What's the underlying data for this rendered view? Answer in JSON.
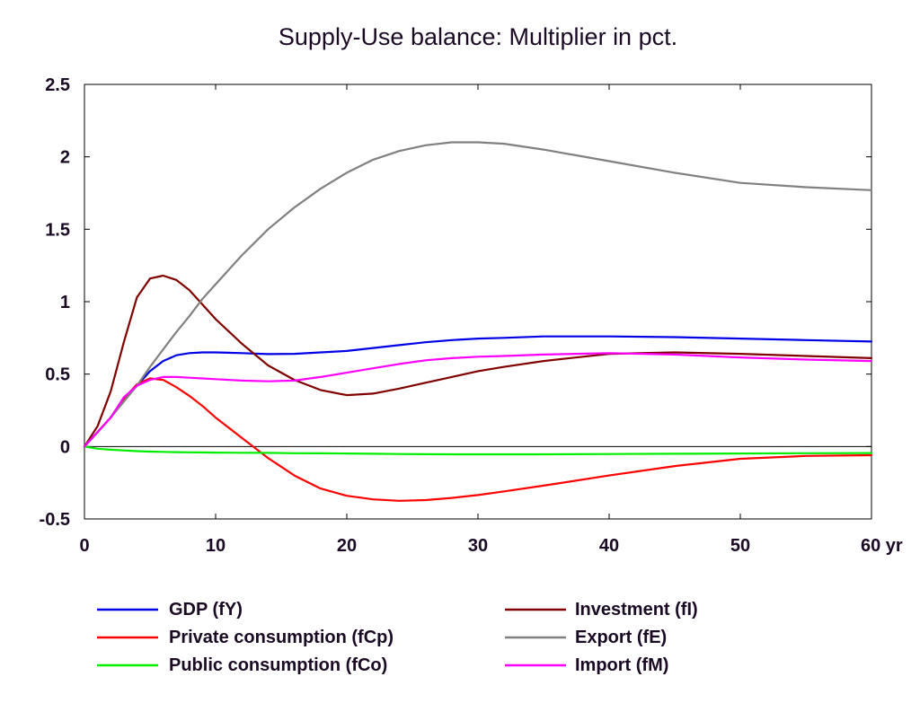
{
  "chart_data": {
    "type": "line",
    "title": "Supply-Use balance: Multiplier in pct.",
    "xlabel": "",
    "ylabel": "",
    "x_unit_label": "yr",
    "xlim": [
      0,
      60
    ],
    "ylim": [
      -0.5,
      2.5
    ],
    "x_ticks": [
      0,
      10,
      20,
      30,
      40,
      50,
      60
    ],
    "x_tick_labels": [
      "0",
      "10",
      "20",
      "30",
      "40",
      "50",
      "60 yr"
    ],
    "y_ticks": [
      -0.5,
      0,
      0.5,
      1,
      1.5,
      2,
      2.5
    ],
    "y_tick_labels": [
      "-0.5",
      "0",
      "0.5",
      "1",
      "1.5",
      "2",
      "2.5"
    ],
    "grid": false,
    "zero_line": true,
    "legend_position": "bottom",
    "x": [
      0,
      1,
      2,
      3,
      4,
      5,
      6,
      7,
      8,
      9,
      10,
      12,
      14,
      16,
      18,
      20,
      22,
      24,
      26,
      28,
      30,
      32,
      35,
      40,
      45,
      50,
      55,
      60
    ],
    "series": [
      {
        "name": "GDP (fY)",
        "color": "#0000e6",
        "values": [
          0,
          0.1,
          0.2,
          0.32,
          0.42,
          0.52,
          0.59,
          0.63,
          0.645,
          0.65,
          0.65,
          0.645,
          0.638,
          0.64,
          0.65,
          0.66,
          0.68,
          0.7,
          0.72,
          0.735,
          0.745,
          0.75,
          0.76,
          0.76,
          0.755,
          0.745,
          0.735,
          0.725
        ]
      },
      {
        "name": "Investment (fI)",
        "color": "#800000",
        "values": [
          0,
          0.14,
          0.38,
          0.72,
          1.03,
          1.16,
          1.18,
          1.15,
          1.08,
          0.98,
          0.88,
          0.71,
          0.56,
          0.46,
          0.39,
          0.355,
          0.365,
          0.4,
          0.44,
          0.48,
          0.52,
          0.55,
          0.59,
          0.64,
          0.65,
          0.64,
          0.625,
          0.61
        ]
      },
      {
        "name": "Private consumption (fCp)",
        "color": "#ff0000",
        "values": [
          0,
          0.1,
          0.2,
          0.33,
          0.43,
          0.47,
          0.46,
          0.41,
          0.35,
          0.28,
          0.2,
          0.06,
          -0.08,
          -0.2,
          -0.29,
          -0.34,
          -0.365,
          -0.375,
          -0.37,
          -0.355,
          -0.335,
          -0.31,
          -0.27,
          -0.2,
          -0.135,
          -0.085,
          -0.065,
          -0.06
        ]
      },
      {
        "name": "Export (fE)",
        "color": "#808080",
        "values": [
          0,
          0.1,
          0.2,
          0.31,
          0.42,
          0.55,
          0.67,
          0.79,
          0.9,
          1.02,
          1.12,
          1.32,
          1.5,
          1.65,
          1.78,
          1.89,
          1.98,
          2.04,
          2.08,
          2.1,
          2.1,
          2.09,
          2.05,
          1.97,
          1.89,
          1.82,
          1.79,
          1.77
        ]
      },
      {
        "name": "Public consumption (fCo)",
        "color": "#00ee00",
        "values": [
          0,
          -0.015,
          -0.022,
          -0.027,
          -0.032,
          -0.035,
          -0.037,
          -0.039,
          -0.04,
          -0.041,
          -0.042,
          -0.043,
          -0.044,
          -0.046,
          -0.047,
          -0.048,
          -0.05,
          -0.052,
          -0.053,
          -0.054,
          -0.054,
          -0.054,
          -0.054,
          -0.052,
          -0.05,
          -0.048,
          -0.046,
          -0.045
        ]
      },
      {
        "name": "Import (fM)",
        "color": "#ff00ff",
        "values": [
          0,
          0.1,
          0.2,
          0.34,
          0.42,
          0.46,
          0.48,
          0.48,
          0.475,
          0.47,
          0.465,
          0.455,
          0.45,
          0.455,
          0.48,
          0.51,
          0.54,
          0.57,
          0.595,
          0.61,
          0.62,
          0.625,
          0.635,
          0.645,
          0.635,
          0.615,
          0.6,
          0.59
        ]
      }
    ],
    "legend": {
      "left": [
        "GDP (fY)",
        "Private consumption (fCp)",
        "Public consumption (fCo)"
      ],
      "right": [
        "Investment (fI)",
        "Export (fE)",
        "Import (fM)"
      ]
    }
  }
}
